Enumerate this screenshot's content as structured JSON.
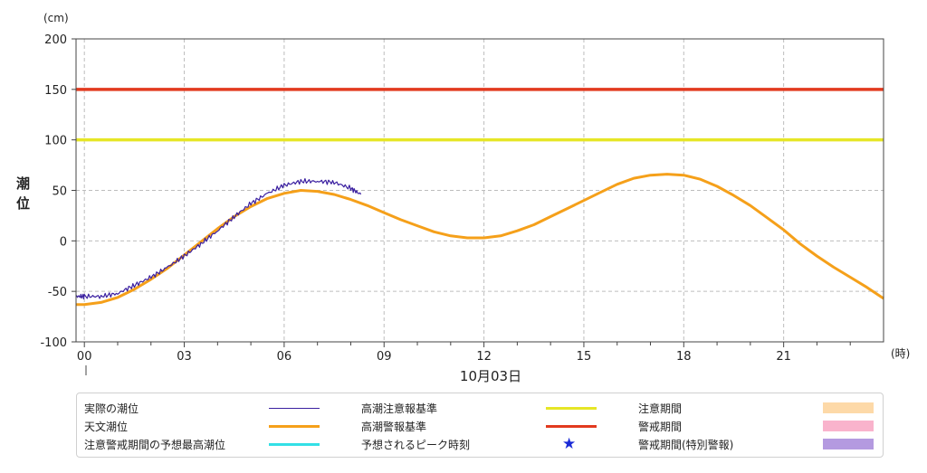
{
  "chart_data": {
    "type": "line",
    "unit_label": "(cm)",
    "ylabel_chars": [
      "潮",
      "位"
    ],
    "xunit_label": "(時)",
    "date_label": "10月03日",
    "ylim": [
      -100,
      200
    ],
    "xlim": [
      -0.25,
      24
    ],
    "yticks": [
      -100,
      -50,
      0,
      50,
      100,
      150,
      200
    ],
    "xticks": [
      {
        "value": 0,
        "label": "00"
      },
      {
        "value": 3,
        "label": "03"
      },
      {
        "value": 6,
        "label": "06"
      },
      {
        "value": 9,
        "label": "09"
      },
      {
        "value": 12,
        "label": "12"
      },
      {
        "value": 15,
        "label": "15"
      },
      {
        "value": 18,
        "label": "18"
      },
      {
        "value": 21,
        "label": "21"
      }
    ],
    "grid": true,
    "series": [
      {
        "name": "実際の潮位",
        "color": "#3a1fa0",
        "x": [
          -0.25,
          0,
          0.5,
          1,
          1.5,
          2,
          2.5,
          3,
          3.5,
          4,
          4.5,
          5,
          5.5,
          6,
          6.5,
          7,
          7.5,
          8,
          8.3
        ],
        "y": [
          -55,
          -55,
          -55,
          -52,
          -44,
          -36,
          -26,
          -15,
          -3,
          10,
          24,
          37,
          47,
          55,
          59,
          59,
          58,
          52,
          46
        ]
      },
      {
        "name": "天文潮位",
        "color": "#f5a01a",
        "x": [
          -0.25,
          0,
          0.5,
          1,
          1.5,
          2,
          2.5,
          3,
          3.5,
          4,
          4.5,
          5,
          5.5,
          6,
          6.5,
          7,
          7.5,
          8,
          8.5,
          9,
          9.5,
          10,
          10.5,
          11,
          11.5,
          12,
          12.5,
          13,
          13.5,
          14,
          14.5,
          15,
          15.5,
          16,
          16.5,
          17,
          17.5,
          18,
          18.5,
          19,
          19.5,
          20,
          20.5,
          21,
          21.5,
          22,
          22.5,
          23,
          23.5,
          24
        ],
        "y": [
          -63,
          -63,
          -61,
          -56,
          -48,
          -38,
          -27,
          -14,
          -1,
          12,
          24,
          34,
          42,
          47,
          50,
          49,
          46,
          41,
          35,
          28,
          21,
          15,
          9,
          5,
          3,
          3,
          5,
          10,
          16,
          24,
          32,
          40,
          48,
          56,
          62,
          65,
          66,
          65,
          61,
          54,
          45,
          35,
          23,
          11,
          -3,
          -15,
          -26,
          -36,
          -46,
          -57
        ]
      }
    ],
    "hlines": [
      {
        "name": "高潮注意報基準",
        "value": 100,
        "color": "#e6e626"
      },
      {
        "name": "高潮警報基準",
        "value": 150,
        "color": "#e23a1f"
      }
    ]
  },
  "legend": [
    {
      "label": "実際の潮位",
      "kind": "thinline",
      "color": "#3a1fa0"
    },
    {
      "label": "天文潮位",
      "kind": "line",
      "color": "#f5a01a"
    },
    {
      "label": "注意警戒期間の予想最高潮位",
      "kind": "line",
      "color": "#33e0e6"
    },
    {
      "label": "高潮注意報基準",
      "kind": "line",
      "color": "#e6e626"
    },
    {
      "label": "高潮警報基準",
      "kind": "line",
      "color": "#e23a1f"
    },
    {
      "label": "予想されるピーク時刻",
      "kind": "star",
      "color": "#1a2ad6",
      "symbol": "★"
    },
    {
      "label": "注意期間",
      "kind": "rect",
      "color": "#fdd9a8"
    },
    {
      "label": "警戒期間",
      "kind": "rect",
      "color": "#f9b3cc"
    },
    {
      "label": "警戒期間(特別警報)",
      "kind": "rect",
      "color": "#b49ae0"
    }
  ]
}
